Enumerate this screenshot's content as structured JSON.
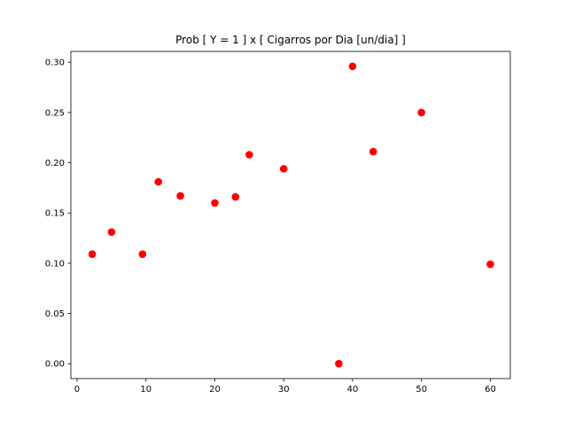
{
  "chart_data": {
    "type": "scatter",
    "title": "Prob [ Y = 1 ] x [ Cigarros por Dia [un/dia] ]",
    "xlabel": "",
    "ylabel": "",
    "xlim": [
      -0.9,
      62.9
    ],
    "ylim": [
      -0.0148,
      0.3108
    ],
    "x_ticks": [
      0,
      10,
      20,
      30,
      40,
      50,
      60
    ],
    "x_tick_labels": [
      "0",
      "10",
      "20",
      "30",
      "40",
      "50",
      "60"
    ],
    "y_ticks": [
      0.0,
      0.05,
      0.1,
      0.15,
      0.2,
      0.25,
      0.3
    ],
    "y_tick_labels": [
      "0.00",
      "0.05",
      "0.10",
      "0.15",
      "0.20",
      "0.25",
      "0.30"
    ],
    "grid": false,
    "legend": "none",
    "marker_color": "#ff0000",
    "points": [
      {
        "x": 2.2,
        "y": 0.109
      },
      {
        "x": 5.0,
        "y": 0.131
      },
      {
        "x": 9.5,
        "y": 0.109
      },
      {
        "x": 11.8,
        "y": 0.181
      },
      {
        "x": 15.0,
        "y": 0.167
      },
      {
        "x": 20.0,
        "y": 0.16
      },
      {
        "x": 23.0,
        "y": 0.166
      },
      {
        "x": 25.0,
        "y": 0.208
      },
      {
        "x": 30.0,
        "y": 0.194
      },
      {
        "x": 38.0,
        "y": 0.0
      },
      {
        "x": 40.0,
        "y": 0.296
      },
      {
        "x": 43.0,
        "y": 0.211
      },
      {
        "x": 50.0,
        "y": 0.25
      },
      {
        "x": 60.0,
        "y": 0.099
      }
    ]
  }
}
